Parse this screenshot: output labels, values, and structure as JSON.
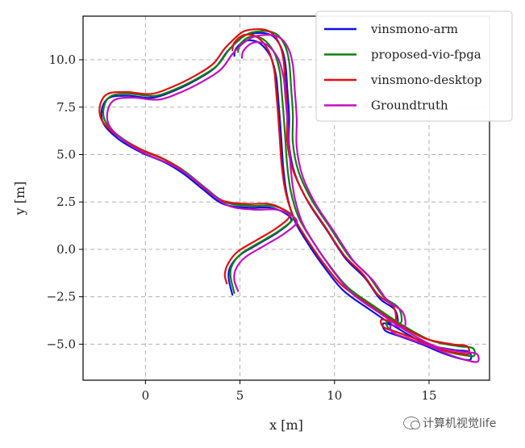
{
  "chart_data": {
    "type": "line",
    "xlabel": "x [m]",
    "ylabel": "y [m]",
    "xlim": [
      -3.3,
      18.2
    ],
    "ylim": [
      -6.9,
      12.3
    ],
    "xticks": [
      0,
      5,
      10,
      15
    ],
    "yticks": [
      -5.0,
      -2.5,
      0.0,
      2.5,
      5.0,
      7.5,
      10.0
    ],
    "xtick_labels": [
      "0",
      "5",
      "10",
      "15"
    ],
    "ytick_labels": [
      "−5.0",
      "−2.5",
      "0.0",
      "2.5",
      "5.0",
      "7.5",
      "10.0"
    ],
    "grid": true,
    "legend_position": "top-right",
    "series": [
      {
        "name": "vinsmono-arm",
        "color": "#1010e0",
        "x": [
          4.6,
          4.4,
          4.5,
          5.0,
          6.0,
          7.0,
          7.7,
          7.4,
          6.6,
          5.4,
          4.1,
          3.0,
          2.0,
          1.0,
          -0.2,
          -1.4,
          -2.2,
          -2.3,
          -1.9,
          -0.9,
          0.4,
          1.6,
          2.8,
          3.7,
          4.3,
          4.9,
          5.3,
          5.8,
          6.3,
          6.8,
          7.2,
          7.4,
          7.5,
          7.6,
          7.6,
          7.9,
          8.6,
          9.6,
          10.6,
          11.6,
          12.4,
          13.2,
          13.3,
          12.6,
          12.7,
          13.5,
          14.6,
          15.8,
          16.8,
          17.2,
          17.1,
          16.3,
          14.9,
          13.4,
          11.9,
          10.5,
          9.5,
          8.6,
          7.9,
          7.5,
          7.3,
          7.2,
          7.1,
          7.0,
          6.9,
          6.6,
          6.0,
          5.3,
          4.8,
          4.7
        ],
        "y": [
          -2.4,
          -1.5,
          -0.9,
          -0.3,
          0.3,
          0.9,
          1.5,
          1.9,
          2.2,
          2.2,
          2.4,
          3.2,
          4.0,
          4.6,
          5.1,
          5.8,
          6.6,
          7.4,
          8.0,
          8.1,
          8.0,
          8.4,
          9.0,
          9.6,
          10.4,
          11.0,
          11.3,
          11.4,
          11.4,
          11.2,
          10.6,
          9.8,
          8.5,
          7.0,
          5.5,
          4.0,
          2.5,
          1.0,
          -0.5,
          -1.5,
          -2.6,
          -3.2,
          -4.0,
          -3.9,
          -4.3,
          -4.6,
          -5.0,
          -5.5,
          -5.8,
          -5.8,
          -5.4,
          -5.3,
          -5.0,
          -4.2,
          -3.2,
          -2.2,
          -1.0,
          0.3,
          1.5,
          2.8,
          4.2,
          5.6,
          7.0,
          8.2,
          9.2,
          10.2,
          10.9,
          11.0,
          10.6,
          10.2
        ]
      },
      {
        "name": "proposed-vio-fpga",
        "color": "#108010",
        "x": [
          4.7,
          4.5,
          4.6,
          5.1,
          6.1,
          7.1,
          7.8,
          7.5,
          6.7,
          5.5,
          4.2,
          3.1,
          2.1,
          1.1,
          -0.1,
          -1.3,
          -2.1,
          -2.2,
          -1.8,
          -0.8,
          0.5,
          1.7,
          2.9,
          3.8,
          4.4,
          5.0,
          5.5,
          6.0,
          6.5,
          7.0,
          7.4,
          7.6,
          7.7,
          7.8,
          7.8,
          8.1,
          8.8,
          9.8,
          10.8,
          11.8,
          12.6,
          13.4,
          13.5,
          12.8,
          12.9,
          13.7,
          14.8,
          16.0,
          17.0,
          17.4,
          17.3,
          16.5,
          15.1,
          13.6,
          12.1,
          10.7,
          9.7,
          8.8,
          8.1,
          7.7,
          7.5,
          7.4,
          7.3,
          7.2,
          7.1,
          6.8,
          6.2,
          5.5,
          5.0,
          4.9
        ],
        "y": [
          -2.3,
          -1.4,
          -0.8,
          -0.2,
          0.4,
          1.0,
          1.6,
          2.0,
          2.3,
          2.3,
          2.5,
          3.3,
          4.1,
          4.7,
          5.2,
          5.9,
          6.7,
          7.5,
          8.1,
          8.2,
          8.1,
          8.5,
          9.1,
          9.7,
          10.5,
          11.1,
          11.4,
          11.5,
          11.5,
          11.3,
          10.7,
          9.9,
          8.6,
          7.1,
          5.6,
          4.1,
          2.6,
          1.1,
          -0.4,
          -1.4,
          -2.5,
          -3.1,
          -3.9,
          -3.8,
          -4.2,
          -4.5,
          -4.9,
          -5.4,
          -5.6,
          -5.6,
          -5.2,
          -5.1,
          -4.8,
          -4.0,
          -3.0,
          -2.0,
          -0.8,
          0.5,
          1.7,
          3.0,
          4.4,
          5.8,
          7.2,
          8.4,
          9.4,
          10.4,
          11.1,
          11.2,
          10.8,
          10.4
        ]
      },
      {
        "name": "vinsmono-desktop",
        "color": "#e01010",
        "x": [
          4.3,
          4.2,
          4.4,
          4.9,
          5.9,
          6.9,
          7.6,
          7.3,
          6.5,
          5.3,
          4.0,
          2.9,
          1.9,
          0.9,
          -0.3,
          -1.5,
          -2.3,
          -2.4,
          -2.0,
          -1.0,
          0.3,
          1.5,
          2.7,
          3.6,
          4.2,
          4.8,
          5.2,
          5.7,
          6.2,
          6.7,
          7.1,
          7.3,
          7.4,
          7.5,
          7.5,
          7.8,
          8.5,
          9.5,
          10.5,
          11.5,
          12.3,
          13.1,
          13.2,
          12.5,
          12.6,
          13.4,
          14.5,
          15.7,
          16.7,
          17.1,
          17.0,
          16.2,
          14.8,
          13.3,
          11.8,
          10.4,
          9.4,
          8.5,
          7.8,
          7.4,
          7.2,
          7.1,
          7.0,
          6.9,
          6.8,
          6.5,
          5.9,
          5.2,
          4.7,
          4.6
        ],
        "y": [
          -1.8,
          -1.3,
          -0.7,
          -0.1,
          0.5,
          1.1,
          1.7,
          2.1,
          2.4,
          2.4,
          2.6,
          3.4,
          4.2,
          4.8,
          5.3,
          6.0,
          6.8,
          7.6,
          8.2,
          8.3,
          8.2,
          8.6,
          9.2,
          9.8,
          10.6,
          11.2,
          11.5,
          11.6,
          11.6,
          11.4,
          10.8,
          10.0,
          8.7,
          7.2,
          5.7,
          4.2,
          2.7,
          1.2,
          -0.3,
          -1.3,
          -2.4,
          -3.0,
          -3.8,
          -3.7,
          -4.1,
          -4.4,
          -4.8,
          -5.3,
          -5.5,
          -5.5,
          -5.1,
          -5.0,
          -4.7,
          -3.9,
          -2.9,
          -1.9,
          -0.7,
          0.6,
          1.8,
          3.1,
          4.5,
          5.9,
          7.3,
          8.5,
          9.5,
          10.5,
          11.2,
          11.3,
          10.9,
          10.5
        ]
      },
      {
        "name": "Groundtruth",
        "color": "#c010c0",
        "x": [
          4.9,
          4.7,
          4.8,
          5.3,
          6.3,
          7.3,
          8.0,
          7.7,
          6.9,
          5.7,
          4.4,
          3.3,
          2.3,
          1.3,
          0.1,
          -1.1,
          -1.9,
          -2.0,
          -1.6,
          -0.6,
          0.7,
          1.9,
          3.1,
          4.0,
          4.6,
          5.2,
          5.7,
          6.2,
          6.7,
          7.2,
          7.6,
          7.8,
          7.9,
          8.0,
          8.0,
          8.3,
          9.0,
          10.0,
          11.0,
          12.0,
          12.8,
          13.6,
          13.7,
          13.0,
          13.1,
          13.9,
          15.0,
          16.2,
          17.2,
          17.6,
          17.5,
          16.7,
          15.3,
          13.8,
          12.3,
          10.9,
          9.9,
          9.0,
          8.3,
          7.9,
          7.7,
          7.6,
          7.5,
          7.4,
          7.3,
          7.0,
          6.4,
          5.7,
          5.2,
          5.1
        ],
        "y": [
          -2.2,
          -1.6,
          -1.0,
          -0.4,
          0.2,
          0.8,
          1.4,
          1.8,
          2.1,
          2.1,
          2.3,
          3.1,
          3.9,
          4.5,
          5.0,
          5.7,
          6.5,
          7.3,
          7.9,
          8.0,
          7.9,
          8.3,
          8.9,
          9.5,
          10.3,
          10.9,
          11.2,
          11.3,
          11.3,
          11.1,
          10.5,
          9.7,
          8.4,
          6.9,
          5.4,
          3.9,
          2.4,
          0.9,
          -0.6,
          -1.6,
          -2.7,
          -3.3,
          -4.1,
          -4.0,
          -4.4,
          -4.7,
          -5.1,
          -5.6,
          -5.9,
          -5.9,
          -5.5,
          -5.4,
          -5.1,
          -4.3,
          -3.3,
          -2.3,
          -1.1,
          0.2,
          1.4,
          2.7,
          4.1,
          5.5,
          6.9,
          8.1,
          9.1,
          10.1,
          10.8,
          10.9,
          10.5,
          10.1
        ]
      }
    ]
  },
  "watermark": {
    "icon": "wechat-icon",
    "text": "计算机视觉life"
  }
}
